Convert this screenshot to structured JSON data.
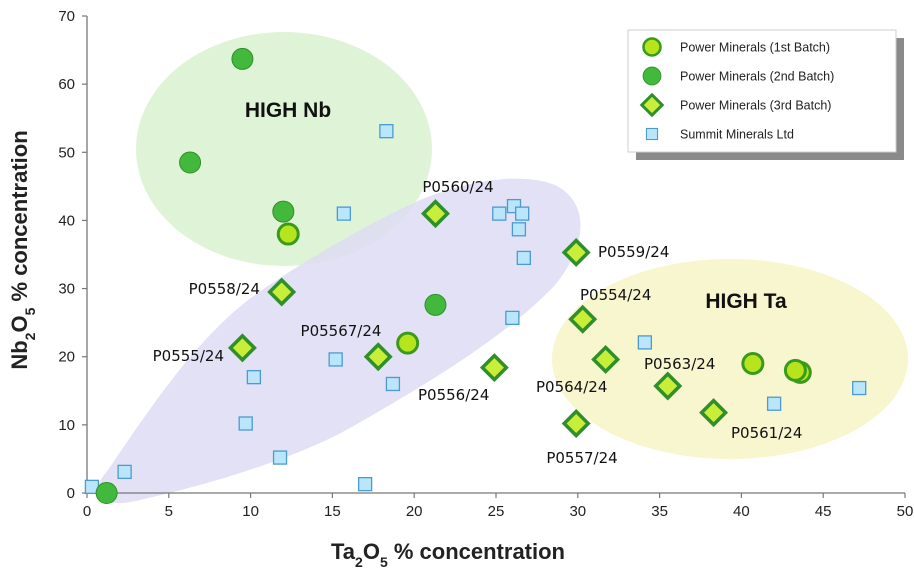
{
  "chart_data": {
    "type": "scatter",
    "xlim": [
      0,
      50
    ],
    "ylim": [
      0,
      70
    ],
    "xticks": [
      0,
      5,
      10,
      15,
      20,
      25,
      30,
      35,
      40,
      45,
      50
    ],
    "yticks": [
      0,
      10,
      20,
      30,
      40,
      50,
      60,
      70
    ],
    "grid": false,
    "legend_position": "top-right",
    "xlabel": {
      "pre": "Ta",
      "s1": "2",
      "mid": "O",
      "s2": "5",
      "post": " % concentration"
    },
    "ylabel": {
      "pre": "Nb",
      "s1": "2",
      "mid": "O",
      "s2": "5",
      "post": " % concentration"
    },
    "regions": [
      {
        "label": "HIGH Nb",
        "color": "#d9f2d0"
      },
      {
        "label": "HIGH Ta",
        "color": "#f7f5c6"
      },
      {
        "label": "",
        "color": "#dedcf3"
      }
    ],
    "series": [
      {
        "name": "Power Minerals (1st Batch)",
        "marker": "circle-ring",
        "color": "#b6e51e",
        "edge": "#3a9a1c",
        "points": [
          [
            12.3,
            38.0
          ],
          [
            19.6,
            22.0
          ],
          [
            40.7,
            19.0
          ],
          [
            43.6,
            17.7
          ],
          [
            43.3,
            18.0
          ]
        ]
      },
      {
        "name": "Power Minerals (2nd Batch)",
        "marker": "circle",
        "color": "#42b83d",
        "edge": "#2f8f2a",
        "points": [
          [
            9.5,
            63.7
          ],
          [
            6.3,
            48.5
          ],
          [
            12.0,
            41.3
          ],
          [
            21.3,
            27.6
          ],
          [
            1.2,
            0.0
          ]
        ]
      },
      {
        "name": "Power Minerals (3rd Batch)",
        "marker": "diamond",
        "color": "#c8ee3a",
        "edge": "#2f8f2a",
        "points": [
          [
            21.3,
            41.0
          ],
          [
            29.9,
            35.3
          ],
          [
            11.9,
            29.5
          ],
          [
            30.3,
            25.5
          ],
          [
            9.5,
            21.3
          ],
          [
            17.8,
            20.0
          ],
          [
            31.7,
            19.6
          ],
          [
            24.9,
            18.4
          ],
          [
            35.5,
            15.7
          ],
          [
            38.3,
            11.8
          ],
          [
            29.9,
            10.2
          ]
        ]
      },
      {
        "name": "Summit Minerals Ltd",
        "marker": "square",
        "color": "#b9e6fa",
        "edge": "#4c9ad0",
        "points": [
          [
            18.3,
            53.1
          ],
          [
            15.7,
            41.0
          ],
          [
            25.2,
            41.0
          ],
          [
            26.1,
            42.1
          ],
          [
            26.6,
            41.0
          ],
          [
            26.4,
            38.7
          ],
          [
            26.7,
            34.5
          ],
          [
            26.0,
            25.7
          ],
          [
            34.1,
            22.1
          ],
          [
            15.2,
            19.6
          ],
          [
            10.2,
            17.0
          ],
          [
            18.7,
            16.0
          ],
          [
            9.7,
            10.2
          ],
          [
            11.8,
            5.2
          ],
          [
            2.3,
            3.1
          ],
          [
            0.3,
            0.9
          ],
          [
            17.0,
            1.3
          ],
          [
            42.0,
            13.1
          ],
          [
            47.2,
            15.4
          ]
        ]
      }
    ],
    "annotations": [
      {
        "text": "P0560/24"
      },
      {
        "text": "P0559/24"
      },
      {
        "text": "P0558/24"
      },
      {
        "text": "P0554/24"
      },
      {
        "text": "P05567/24"
      },
      {
        "text": "P0555/24"
      },
      {
        "text": "P0563/24"
      },
      {
        "text": "P0564/24"
      },
      {
        "text": "P0556/24"
      },
      {
        "text": "P0561/24"
      },
      {
        "text": "P0557/24"
      }
    ]
  }
}
